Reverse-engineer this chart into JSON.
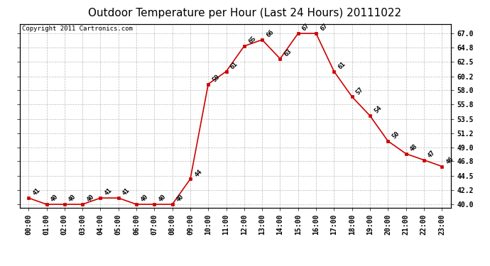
{
  "title": "Outdoor Temperature per Hour (Last 24 Hours) 20111022",
  "copyright": "Copyright 2011 Cartronics.com",
  "hours": [
    "00:00",
    "01:00",
    "02:00",
    "03:00",
    "04:00",
    "05:00",
    "06:00",
    "07:00",
    "08:00",
    "09:00",
    "10:00",
    "11:00",
    "12:00",
    "13:00",
    "14:00",
    "15:00",
    "16:00",
    "17:00",
    "18:00",
    "19:00",
    "20:00",
    "21:00",
    "22:00",
    "23:00"
  ],
  "temps": [
    41,
    40,
    40,
    40,
    41,
    41,
    40,
    40,
    40,
    44,
    59,
    61,
    65,
    66,
    63,
    67,
    67,
    61,
    57,
    54,
    50,
    48,
    47,
    46
  ],
  "ylim_min": 39.5,
  "ylim_max": 68.5,
  "yticks": [
    40.0,
    42.2,
    44.5,
    46.8,
    49.0,
    51.2,
    53.5,
    55.8,
    58.0,
    60.2,
    62.5,
    64.8,
    67.0
  ],
  "line_color": "#cc0000",
  "marker_color": "#cc0000",
  "bg_color": "#ffffff",
  "grid_color": "#bbbbbb",
  "title_fontsize": 11,
  "copyright_fontsize": 6.5,
  "label_fontsize": 6.5,
  "tick_fontsize": 7
}
